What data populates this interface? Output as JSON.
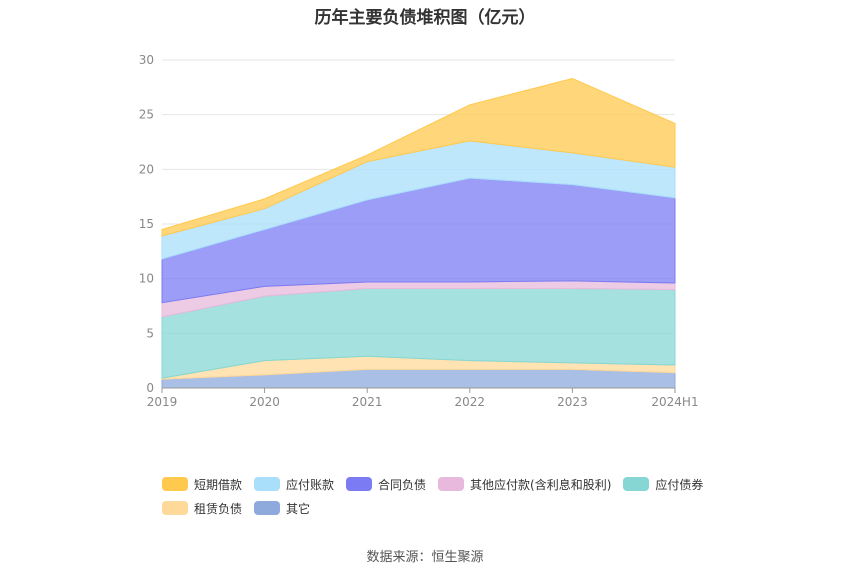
{
  "chart_data": {
    "type": "area",
    "stacked": true,
    "title": "历年主要负债堆积图（亿元）",
    "categories": [
      "2019",
      "2020",
      "2021",
      "2022",
      "2023",
      "2024H1"
    ],
    "ylim": [
      0,
      30
    ],
    "yticks": [
      0,
      5,
      10,
      15,
      20,
      25,
      30
    ],
    "grid": true,
    "legend_position": "bottom",
    "series": [
      {
        "name": "其它",
        "color": "#8eaadc",
        "values": [
          0.8,
          1.2,
          1.7,
          1.7,
          1.7,
          1.4
        ]
      },
      {
        "name": "租赁负债",
        "color": "#ffd99a",
        "values": [
          0.1,
          1.3,
          1.2,
          0.8,
          0.6,
          0.7
        ]
      },
      {
        "name": "应付债券",
        "color": "#86d7d4",
        "values": [
          5.6,
          5.9,
          6.2,
          6.6,
          6.8,
          6.9
        ]
      },
      {
        "name": "其他应付款(含利息和股利)",
        "color": "#e8b9dc",
        "values": [
          1.3,
          0.9,
          0.6,
          0.6,
          0.7,
          0.6
        ]
      },
      {
        "name": "合同负债",
        "color": "#7b7cf3",
        "values": [
          4.0,
          5.2,
          7.5,
          9.5,
          8.8,
          7.8
        ]
      },
      {
        "name": "应付账款",
        "color": "#a9dffb",
        "values": [
          2.1,
          1.9,
          3.5,
          3.4,
          2.9,
          2.8
        ]
      },
      {
        "name": "短期借款",
        "color": "#ffc94d",
        "values": [
          0.6,
          0.9,
          0.6,
          3.3,
          6.8,
          4.0
        ]
      }
    ]
  },
  "legend_rows": [
    [
      "短期借款",
      "应付账款",
      "合同负债",
      "其他应付款(含利息和股利)",
      "应付债券"
    ],
    [
      "租赁负债",
      "其它"
    ]
  ],
  "source": "数据来源：恒生聚源"
}
